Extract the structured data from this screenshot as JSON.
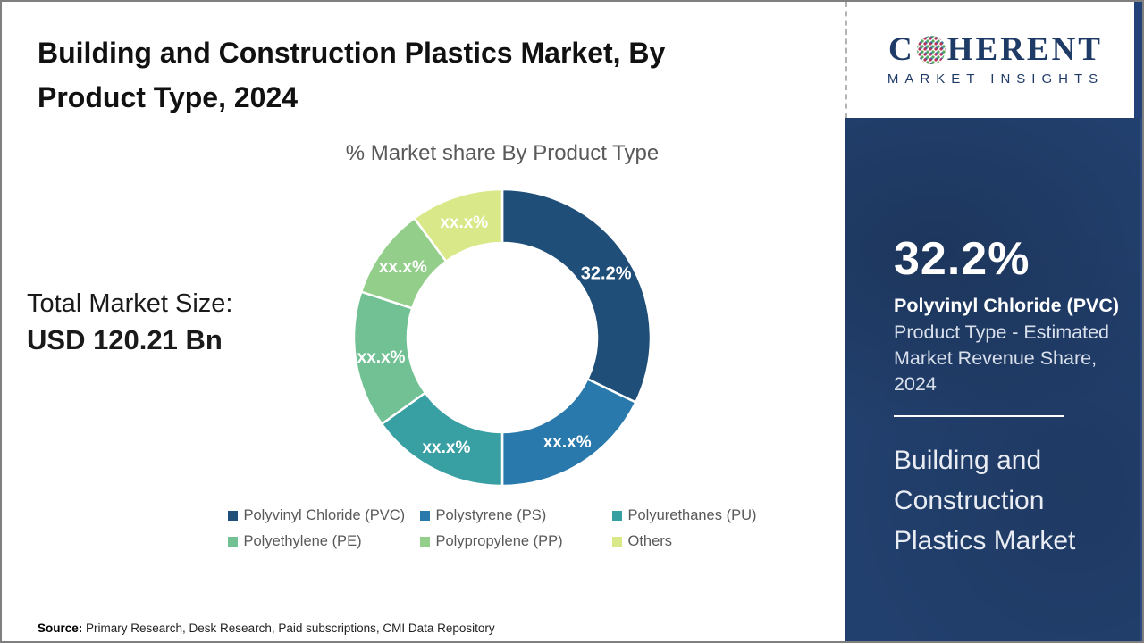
{
  "header": {
    "title": "Building and Construction Plastics Market, By Product Type, 2024"
  },
  "logo": {
    "name_prefix": "C",
    "name_suffix": "HERENT",
    "tagline": "MARKET INSIGHTS",
    "brand_color": "#1E3A66"
  },
  "stats": {
    "total_label": "Total Market Size:",
    "total_value": "USD 120.21 Bn"
  },
  "chart_data": {
    "type": "pie",
    "donut": true,
    "title": "% Market share By Product Type",
    "legend_position": "bottom",
    "start_angle_deg": 0,
    "series": [
      {
        "name": "Polyvinyl Chloride (PVC)",
        "value": 32.2,
        "label": "32.2%",
        "color": "#1F4E79"
      },
      {
        "name": "Polystyrene (PS)",
        "value": 17.8,
        "label": "xx.x%",
        "color": "#2979AC"
      },
      {
        "name": "Polyurethanes (PU)",
        "value": 15.1,
        "label": "xx.x%",
        "color": "#389FA3"
      },
      {
        "name": "Polyethylene (PE)",
        "value": 14.9,
        "label": "xx.x%",
        "color": "#71C194"
      },
      {
        "name": "Polypropylene (PP)",
        "value": 9.9,
        "label": "xx.x%",
        "color": "#93CF8B"
      },
      {
        "name": "Others",
        "value": 10.1,
        "label": "xx.x%",
        "color": "#D9E889"
      }
    ]
  },
  "sidebar": {
    "bg_color": "#22406E",
    "headline_value": "32.2%",
    "headline_name": "Polyvinyl Chloride (PVC)",
    "headline_desc": "Product Type - Estimated Market Revenue Share, 2024",
    "market_name": "Building and Construction Plastics Market"
  },
  "footer": {
    "source_label": "Source:",
    "source_text": " Primary Research, Desk Research, Paid subscriptions, CMI Data Repository"
  }
}
